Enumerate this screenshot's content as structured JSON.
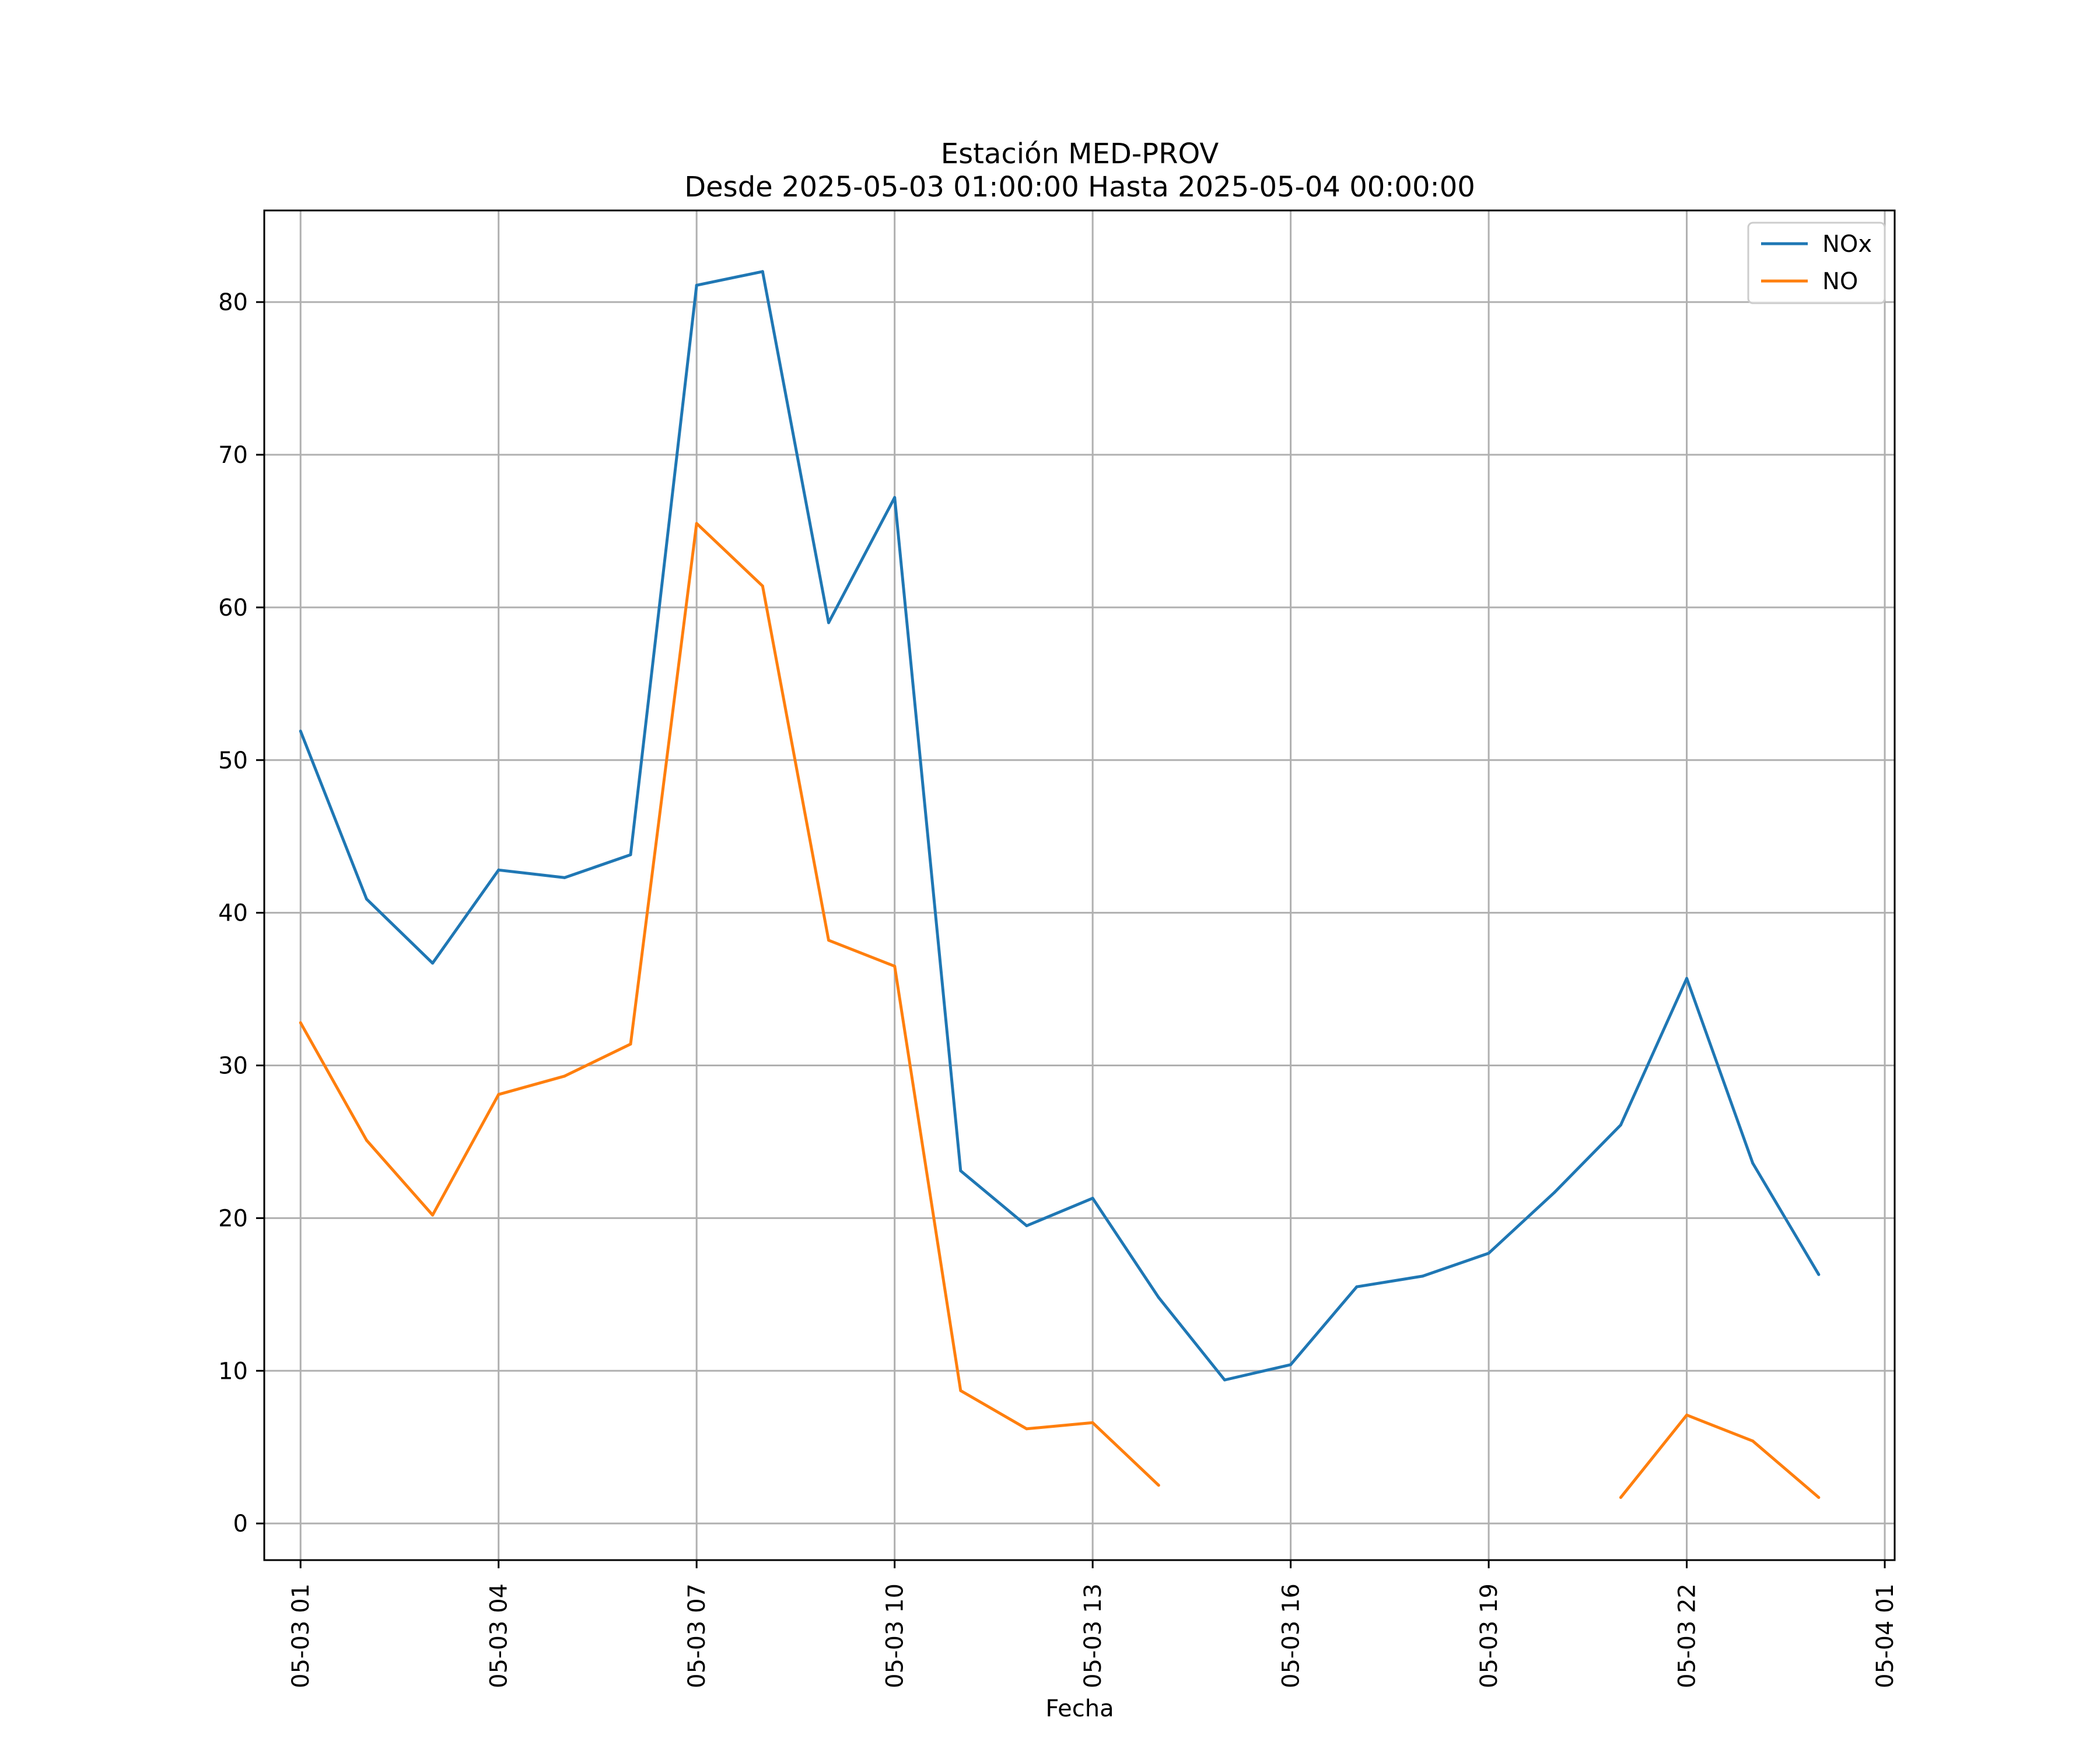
{
  "chart_data": {
    "type": "line",
    "title": "Estación MED-PROV",
    "subtitle": "Desde 2025-05-03 01:00:00 Hasta 2025-05-04 00:00:00",
    "xlabel": "Fecha",
    "ylabel": "",
    "x": [
      "05-03 01",
      "05-03 02",
      "05-03 03",
      "05-03 04",
      "05-03 05",
      "05-03 06",
      "05-03 07",
      "05-03 08",
      "05-03 09",
      "05-03 10",
      "05-03 11",
      "05-03 12",
      "05-03 13",
      "05-03 14",
      "05-03 15",
      "05-03 16",
      "05-03 17",
      "05-03 18",
      "05-03 19",
      "05-03 20",
      "05-03 21",
      "05-03 22",
      "05-03 23",
      "05-04 00"
    ],
    "xlim_hours": [
      -0.55,
      24.15
    ],
    "x_ticks": [
      {
        "hour": 0,
        "label": "05-03 01"
      },
      {
        "hour": 3,
        "label": "05-03 04"
      },
      {
        "hour": 6,
        "label": "05-03 07"
      },
      {
        "hour": 9,
        "label": "05-03 10"
      },
      {
        "hour": 12,
        "label": "05-03 13"
      },
      {
        "hour": 15,
        "label": "05-03 16"
      },
      {
        "hour": 18,
        "label": "05-03 19"
      },
      {
        "hour": 21,
        "label": "05-03 22"
      },
      {
        "hour": 24,
        "label": "05-04 01"
      }
    ],
    "ylim": [
      -2.4,
      86.0
    ],
    "y_ticks": [
      0,
      10,
      20,
      30,
      40,
      50,
      60,
      70,
      80
    ],
    "grid": true,
    "legend_position": "top-right",
    "series": [
      {
        "name": "NOx",
        "color": "#1f77b4",
        "values": [
          51.9,
          40.9,
          36.7,
          42.8,
          42.3,
          43.8,
          81.1,
          82.0,
          59.0,
          67.2,
          23.1,
          19.5,
          21.3,
          14.8,
          9.4,
          10.4,
          15.5,
          16.2,
          17.7,
          21.7,
          26.1,
          35.7,
          23.6,
          16.3
        ]
      },
      {
        "name": "NO",
        "color": "#ff7f0e",
        "values": [
          32.8,
          25.1,
          20.2,
          28.1,
          29.3,
          31.4,
          65.5,
          61.4,
          38.2,
          36.5,
          8.7,
          6.2,
          6.6,
          2.5,
          null,
          null,
          null,
          null,
          null,
          null,
          1.7,
          7.1,
          5.4,
          1.7
        ]
      }
    ]
  }
}
